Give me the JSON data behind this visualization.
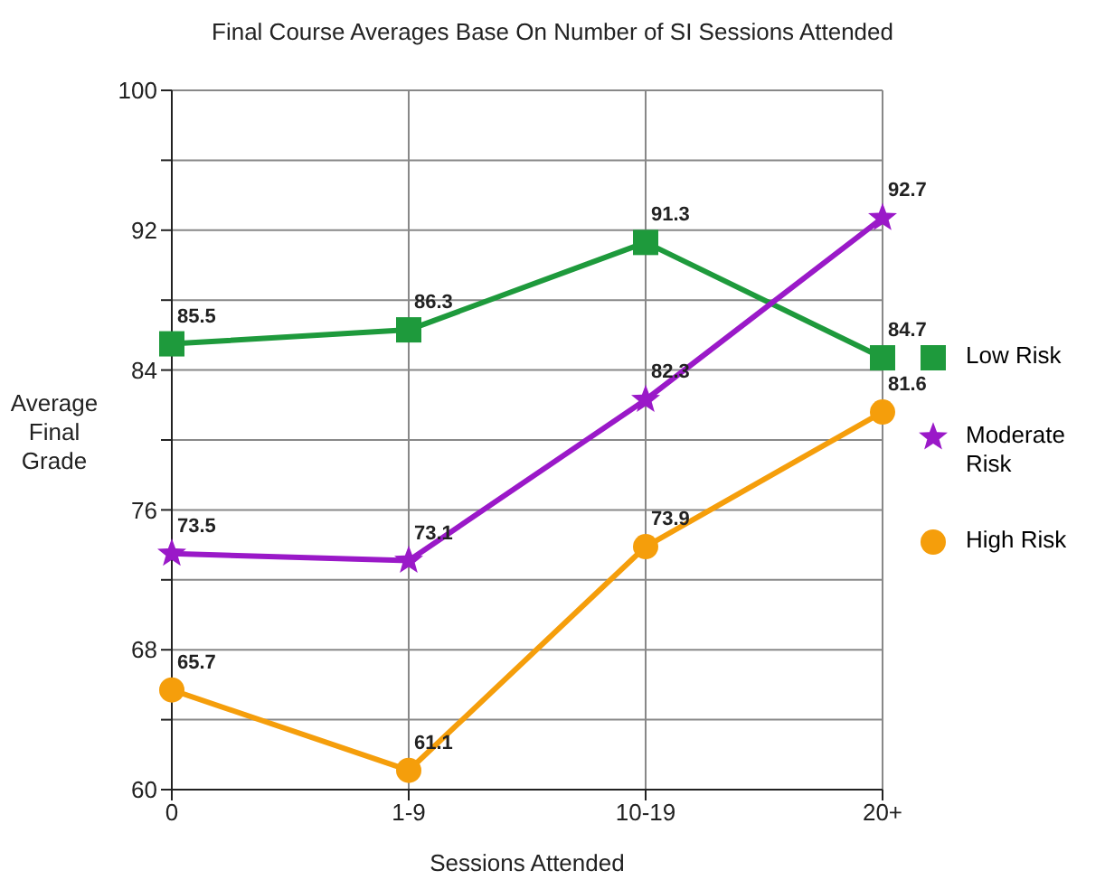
{
  "chart_data": {
    "type": "line",
    "title": "Final Course Averages Base On Number of SI Sessions Attended",
    "xlabel": "Sessions Attended",
    "ylabel": "Average Final Grade",
    "categories": [
      "0",
      "1-9",
      "10-19",
      "20+"
    ],
    "series": [
      {
        "name": "Low Risk",
        "color": "#1e9a3c",
        "marker": "square",
        "values": [
          85.5,
          86.3,
          91.3,
          84.7
        ]
      },
      {
        "name": "Moderate Risk",
        "color": "#9a19c8",
        "marker": "star",
        "values": [
          73.5,
          73.1,
          82.3,
          92.7
        ]
      },
      {
        "name": "High Risk",
        "color": "#f59e0b",
        "marker": "circle",
        "values": [
          65.7,
          61.1,
          73.9,
          81.6
        ]
      }
    ],
    "ylim": [
      60,
      100
    ],
    "yticks": [
      60,
      {
        "value": 64,
        "label": null
      },
      68,
      {
        "value": 72,
        "label": null
      },
      76,
      {
        "value": 80,
        "label": null
      },
      84,
      {
        "value": 88,
        "label": null
      },
      92,
      {
        "value": 96,
        "label": null
      },
      100
    ],
    "grid": true,
    "legend": "right",
    "data_labels": true,
    "line_style": "solid"
  }
}
